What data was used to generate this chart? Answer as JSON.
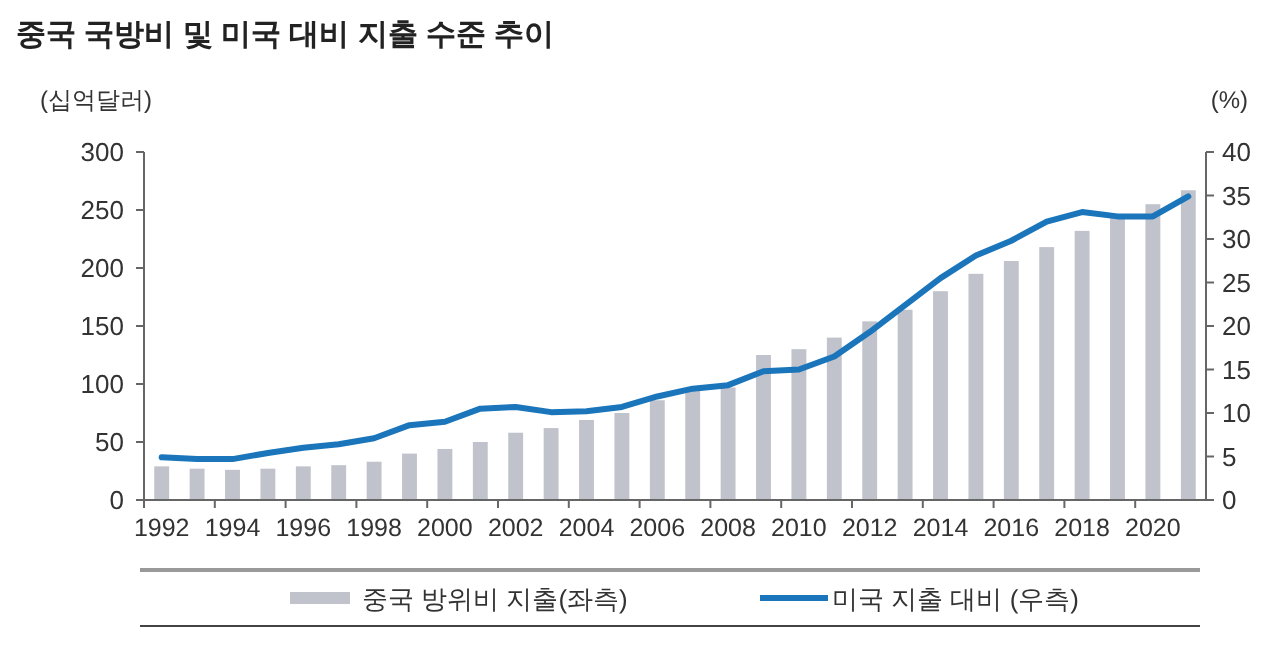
{
  "chart_data": {
    "type": "bar",
    "title": "중국 국방비 및 미국 대비 지출 수준 추이",
    "ylabel": "(십억달러)",
    "y2label": "(%)",
    "categories": [
      "1992",
      null,
      "1994",
      null,
      "1996",
      null,
      "1998",
      null,
      "2000",
      null,
      "2002",
      null,
      "2004",
      null,
      "2006",
      null,
      "2008",
      null,
      "2010",
      null,
      "2012",
      null,
      "2014",
      null,
      "2016",
      null,
      "2018",
      null,
      "2020",
      null
    ],
    "series": [
      {
        "name": "중국 방위비 지출(좌측)",
        "color": "#c0c2cc",
        "values": [
          29,
          27,
          26,
          27,
          29,
          30,
          33,
          40,
          44,
          50,
          58,
          62,
          69,
          75,
          86,
          96,
          97,
          125,
          130,
          140,
          154,
          164,
          180,
          195,
          206,
          218,
          232,
          244,
          255,
          267
        ]
      },
      {
        "name": "미국 지출 대비 (우측)",
        "type": "line",
        "axis": "y2",
        "color": "#1a75bb",
        "values": [
          4.9,
          4.7,
          4.7,
          5.4,
          6.0,
          6.4,
          7.1,
          8.6,
          9.0,
          10.5,
          10.7,
          10.1,
          10.2,
          10.7,
          11.9,
          12.8,
          13.2,
          14.8,
          15.0,
          16.5,
          19.3,
          22.4,
          25.5,
          28.1,
          29.8,
          32.0,
          33.1,
          32.6,
          32.6,
          34.9
        ]
      }
    ],
    "ylim": [
      0,
      300
    ],
    "yticks": [
      0,
      50,
      100,
      150,
      200,
      250,
      300
    ],
    "y2lim": [
      0,
      40
    ],
    "y2ticks": [
      0,
      5,
      10,
      15,
      20,
      25,
      30,
      35,
      40
    ],
    "grid": false,
    "legend": "bottom"
  }
}
